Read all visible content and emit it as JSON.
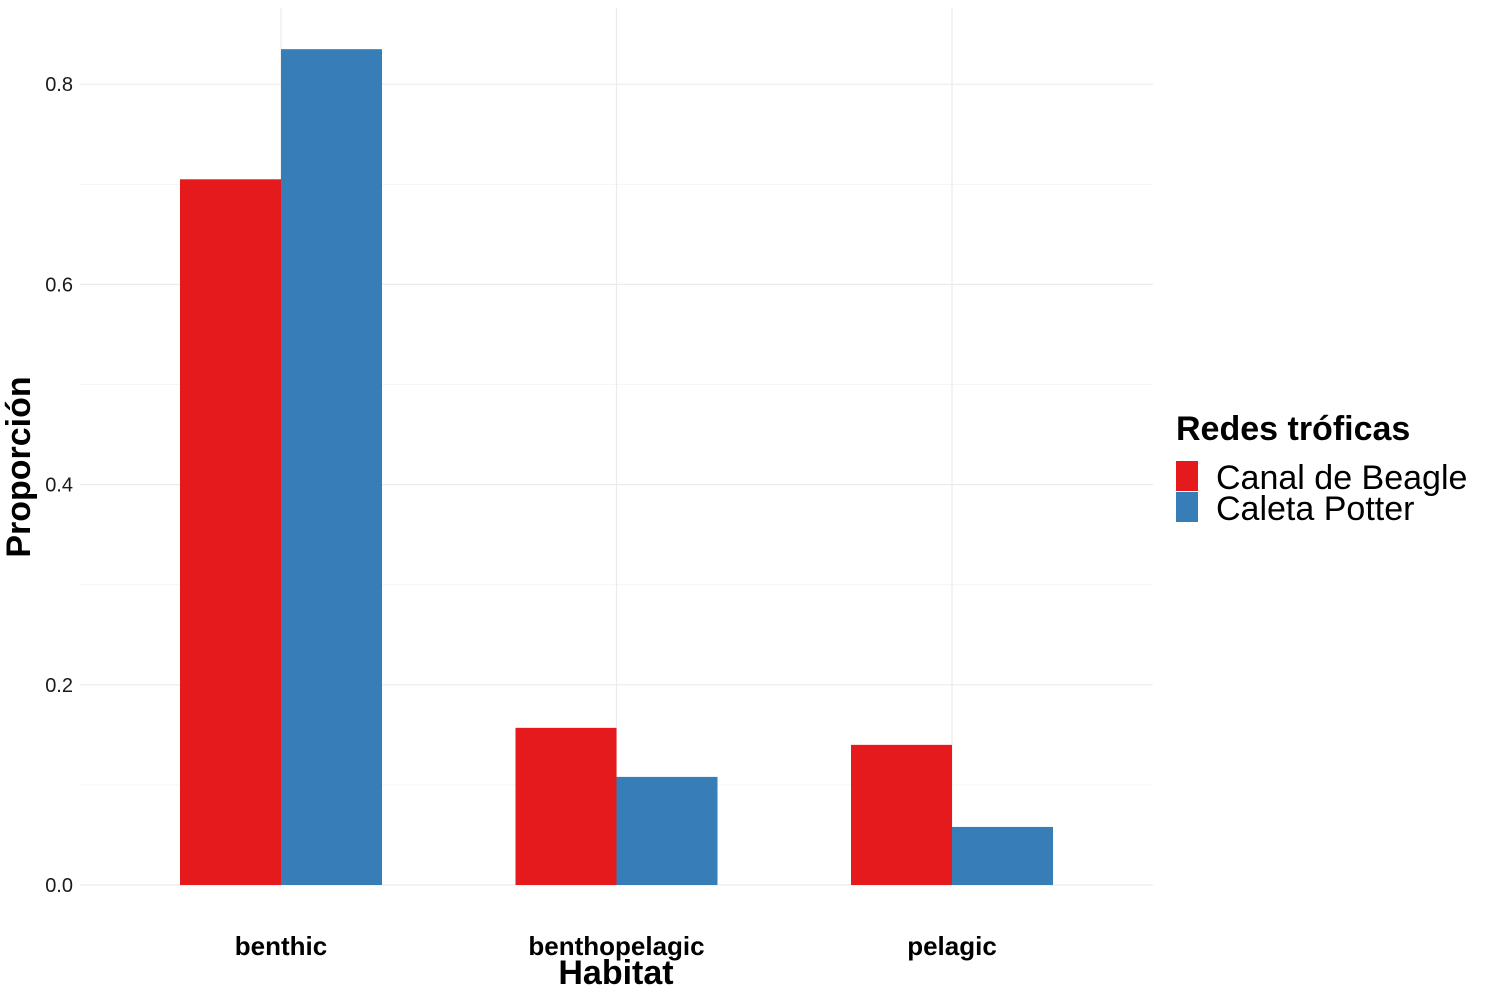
{
  "chart_data": {
    "type": "bar",
    "xlabel": "Habitat",
    "ylabel": "Proporción",
    "categories": [
      "benthic",
      "benthopelagic",
      "pelagic"
    ],
    "series": [
      {
        "name": "Canal de Beagle",
        "color": "#E41A1C",
        "values": [
          0.705,
          0.157,
          0.14
        ]
      },
      {
        "name": "Caleta Potter",
        "color": "#377EB8",
        "values": [
          0.835,
          0.108,
          0.058
        ]
      }
    ],
    "ylim": [
      0,
      0.875
    ],
    "yticks": [
      "0.0",
      "0.2",
      "0.4",
      "0.6",
      "0.8"
    ],
    "grid": true,
    "legend": {
      "title": "Redes tróficas",
      "position": "right"
    }
  }
}
